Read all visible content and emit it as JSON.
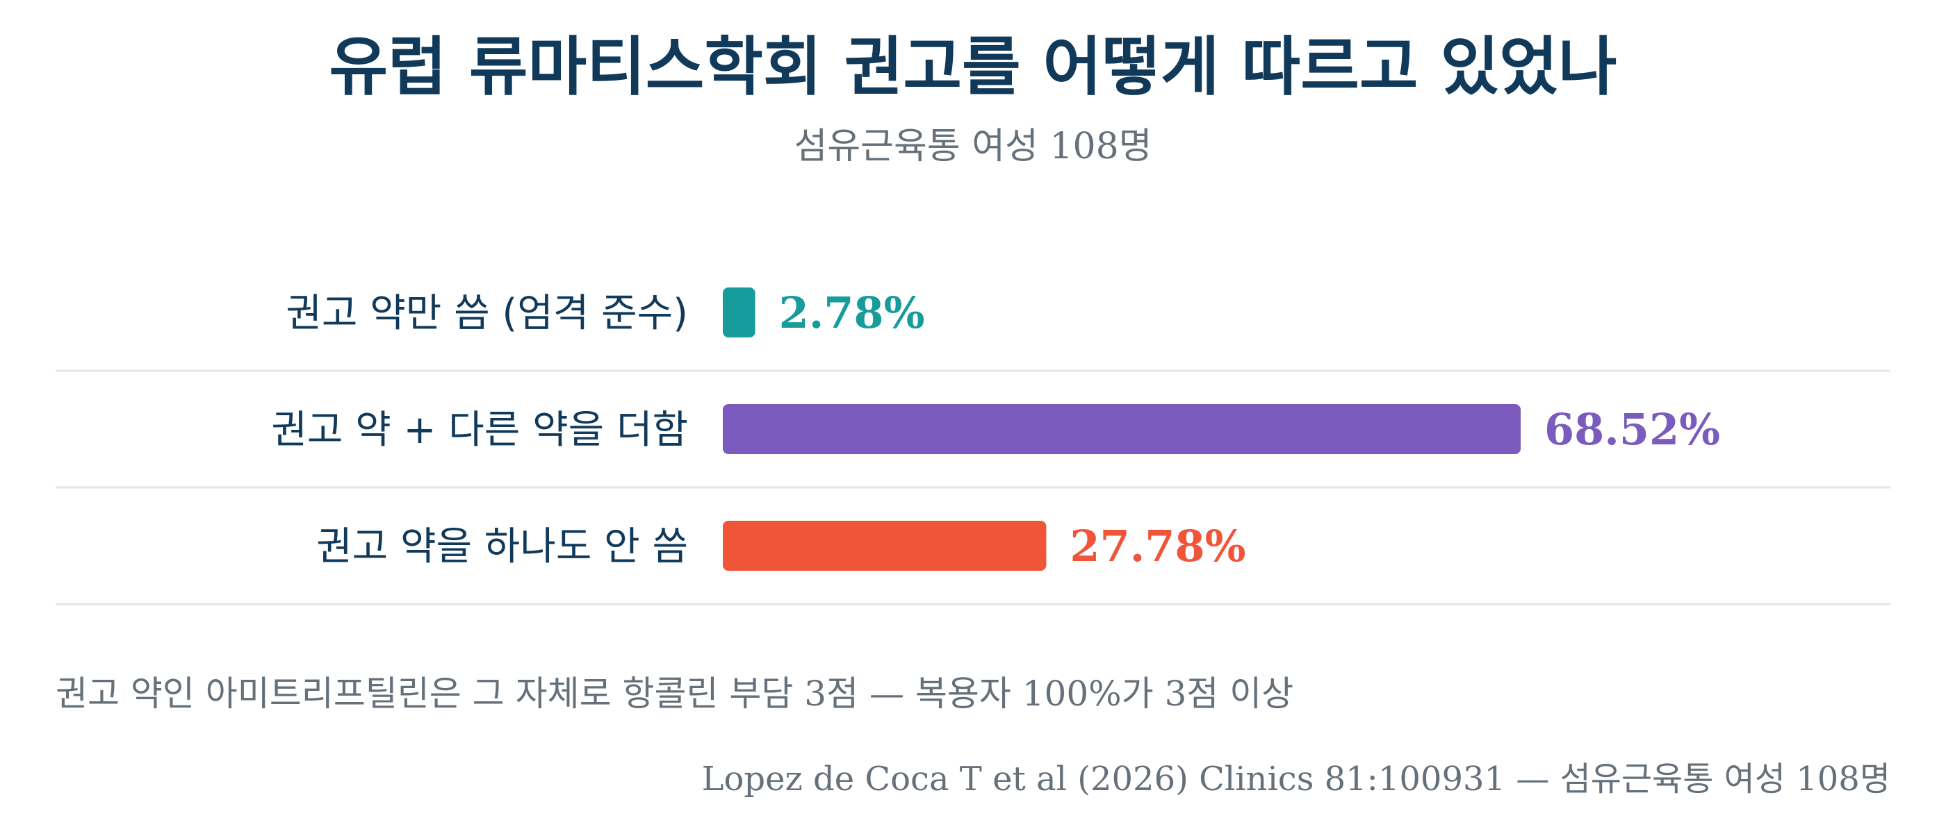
{
  "chart_data": {
    "type": "bar",
    "orientation": "horizontal",
    "title": "유럽 류마티스학회 권고를 어떻게 따르고 있었나",
    "subtitle": "섬유근육통 여성 108명",
    "categories": [
      "권고 약만 씀 (엄격 준수)",
      "권고 약 + 다른 약을 더함",
      "권고 약을 하나도 안 씀"
    ],
    "values": [
      2.78,
      68.52,
      27.78
    ],
    "value_labels": [
      "2.78%",
      "68.52%",
      "27.78%"
    ],
    "colors": [
      "#169c9b",
      "#7b5bbd",
      "#f0553a"
    ],
    "unit": "%",
    "grid": false,
    "legend": "none",
    "annotation": "권고 약인 아미트리프틸린은 그 자체로 항콜린 부담 3점 — 복용자 100%가 3점 이상",
    "source": "Lopez de Coca T et al (2026) Clinics 81:100931 — 섬유근육통 여성 108명"
  }
}
